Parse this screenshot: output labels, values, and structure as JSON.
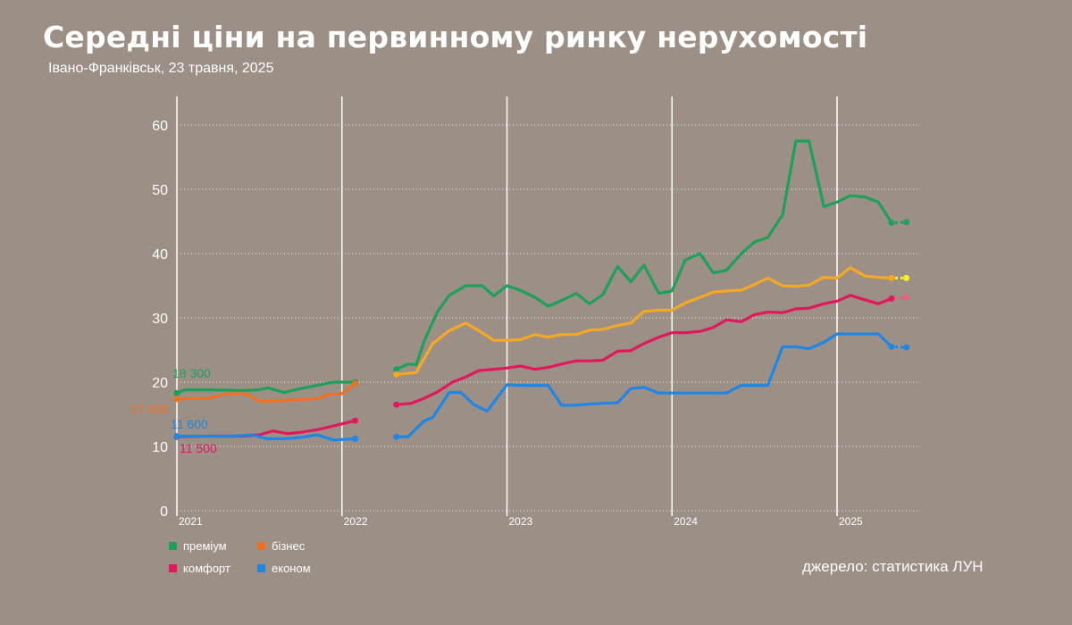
{
  "title": "Середні ціни на первинному ринку нерухомості",
  "subtitle": "Івано-Франківськ, 23 травня, 2025",
  "source": "джерело: статистика ЛУН",
  "chart_data": {
    "type": "line",
    "ylim": [
      0,
      60
    ],
    "yticks": [
      "0",
      "10",
      "20",
      "30",
      "40",
      "50",
      "60"
    ],
    "xlim": [
      2021.0,
      2025.35
    ],
    "xticks": [
      {
        "value": 2021,
        "label": "2021"
      },
      {
        "value": 2022,
        "label": "2022"
      },
      {
        "value": 2023,
        "label": "2023"
      },
      {
        "value": 2024,
        "label": "2024"
      },
      {
        "value": 2025,
        "label": "2025"
      }
    ],
    "grid": "horizontal dotted, vertical solid at years",
    "legend_position": "bottom-left",
    "series": [
      {
        "name": "преміум",
        "color": "#1fa05a",
        "segments": [
          [
            [
              2021.0,
              18.3
            ],
            [
              2021.05,
              18.8
            ],
            [
              2021.2,
              18.8
            ],
            [
              2021.4,
              18.7
            ],
            [
              2021.5,
              18.8
            ],
            [
              2021.55,
              19.1
            ],
            [
              2021.65,
              18.4
            ],
            [
              2021.75,
              19.0
            ],
            [
              2021.85,
              19.5
            ],
            [
              2021.95,
              20.0
            ],
            [
              2022.08,
              20.0
            ]
          ],
          [
            [
              2022.33,
              22.0
            ],
            [
              2022.4,
              22.8
            ],
            [
              2022.45,
              22.7
            ],
            [
              2022.5,
              26.5
            ],
            [
              2022.58,
              31.0
            ],
            [
              2022.65,
              33.5
            ],
            [
              2022.75,
              35.0
            ],
            [
              2022.85,
              35.0
            ],
            [
              2022.92,
              33.4
            ],
            [
              2023.0,
              35.0
            ],
            [
              2023.08,
              34.3
            ],
            [
              2023.17,
              33.2
            ],
            [
              2023.25,
              31.8
            ],
            [
              2023.33,
              32.7
            ],
            [
              2023.42,
              33.8
            ],
            [
              2023.5,
              32.2
            ],
            [
              2023.58,
              33.6
            ],
            [
              2023.67,
              38.0
            ],
            [
              2023.75,
              35.6
            ],
            [
              2023.83,
              38.2
            ],
            [
              2023.92,
              33.8
            ],
            [
              2024.0,
              34.2
            ],
            [
              2024.08,
              39.0
            ],
            [
              2024.17,
              40.0
            ],
            [
              2024.25,
              37.0
            ],
            [
              2024.33,
              37.4
            ],
            [
              2024.42,
              40.0
            ],
            [
              2024.5,
              41.8
            ],
            [
              2024.58,
              42.5
            ],
            [
              2024.67,
              46.0
            ],
            [
              2024.75,
              57.5
            ],
            [
              2024.83,
              57.5
            ],
            [
              2024.92,
              47.3
            ],
            [
              2025.0,
              48.0
            ],
            [
              2025.08,
              49.0
            ],
            [
              2025.17,
              48.8
            ],
            [
              2025.25,
              48.0
            ],
            [
              2025.33,
              44.8
            ]
          ],
          [
            [
              2025.42,
              44.9
            ]
          ]
        ]
      },
      {
        "name": "бізнес",
        "color_early": "#f26f1f",
        "color": "#f5a823",
        "color_late": "#f6f026",
        "segments": [
          [
            [
              2021.0,
              17.4
            ],
            [
              2021.05,
              17.4
            ],
            [
              2021.2,
              17.5
            ],
            [
              2021.3,
              18.2
            ],
            [
              2021.42,
              18.2
            ],
            [
              2021.5,
              17.0
            ],
            [
              2021.6,
              17.1
            ],
            [
              2021.75,
              17.3
            ],
            [
              2021.85,
              17.4
            ],
            [
              2021.92,
              18.1
            ],
            [
              2022.0,
              18.2
            ],
            [
              2022.08,
              19.8
            ]
          ],
          [
            [
              2022.33,
              21.2
            ],
            [
              2022.45,
              21.5
            ],
            [
              2022.55,
              26.0
            ],
            [
              2022.65,
              28.0
            ],
            [
              2022.75,
              29.2
            ],
            [
              2022.83,
              28.0
            ],
            [
              2022.92,
              26.5
            ],
            [
              2023.0,
              26.5
            ],
            [
              2023.08,
              26.6
            ],
            [
              2023.17,
              27.4
            ],
            [
              2023.25,
              27.0
            ],
            [
              2023.33,
              27.4
            ],
            [
              2023.42,
              27.4
            ],
            [
              2023.5,
              28.1
            ],
            [
              2023.58,
              28.2
            ],
            [
              2023.67,
              28.8
            ],
            [
              2023.75,
              29.2
            ],
            [
              2023.83,
              31.0
            ],
            [
              2023.92,
              31.2
            ],
            [
              2024.0,
              31.2
            ],
            [
              2024.08,
              32.3
            ],
            [
              2024.17,
              33.2
            ],
            [
              2024.25,
              34.0
            ],
            [
              2024.33,
              34.2
            ],
            [
              2024.42,
              34.3
            ],
            [
              2024.5,
              35.2
            ],
            [
              2024.58,
              36.2
            ],
            [
              2024.67,
              35.0
            ],
            [
              2024.75,
              34.9
            ],
            [
              2024.83,
              35.1
            ],
            [
              2024.92,
              36.3
            ],
            [
              2025.0,
              36.2
            ],
            [
              2025.08,
              37.8
            ],
            [
              2025.17,
              36.5
            ],
            [
              2025.25,
              36.3
            ],
            [
              2025.33,
              36.2
            ]
          ],
          [
            [
              2025.42,
              36.2
            ]
          ]
        ]
      },
      {
        "name": "комфорт",
        "color": "#e0195f",
        "color_late": "#ee5d7e",
        "segments": [
          [
            [
              2021.0,
              11.5
            ],
            [
              2021.2,
              11.6
            ],
            [
              2021.4,
              11.6
            ],
            [
              2021.5,
              11.8
            ],
            [
              2021.58,
              12.4
            ],
            [
              2021.67,
              12.0
            ],
            [
              2021.75,
              12.2
            ],
            [
              2021.85,
              12.6
            ],
            [
              2021.95,
              13.2
            ],
            [
              2022.08,
              14.0
            ]
          ],
          [
            [
              2022.33,
              16.5
            ],
            [
              2022.42,
              16.7
            ],
            [
              2022.5,
              17.5
            ],
            [
              2022.58,
              18.5
            ],
            [
              2022.67,
              20.0
            ],
            [
              2022.75,
              20.8
            ],
            [
              2022.83,
              21.8
            ],
            [
              2022.92,
              22.0
            ],
            [
              2023.0,
              22.2
            ],
            [
              2023.08,
              22.5
            ],
            [
              2023.17,
              22.0
            ],
            [
              2023.25,
              22.3
            ],
            [
              2023.33,
              22.8
            ],
            [
              2023.42,
              23.3
            ],
            [
              2023.5,
              23.3
            ],
            [
              2023.58,
              23.4
            ],
            [
              2023.67,
              24.8
            ],
            [
              2023.75,
              24.9
            ],
            [
              2023.83,
              26.0
            ],
            [
              2023.92,
              27.0
            ],
            [
              2024.0,
              27.7
            ],
            [
              2024.08,
              27.7
            ],
            [
              2024.17,
              27.9
            ],
            [
              2024.25,
              28.5
            ],
            [
              2024.33,
              29.7
            ],
            [
              2024.42,
              29.4
            ],
            [
              2024.5,
              30.5
            ],
            [
              2024.58,
              30.9
            ],
            [
              2024.67,
              30.8
            ],
            [
              2024.75,
              31.4
            ],
            [
              2024.83,
              31.5
            ],
            [
              2024.92,
              32.2
            ],
            [
              2025.0,
              32.6
            ],
            [
              2025.08,
              33.5
            ],
            [
              2025.17,
              32.8
            ],
            [
              2025.25,
              32.2
            ],
            [
              2025.33,
              33.0
            ]
          ],
          [
            [
              2025.42,
              33.2
            ]
          ]
        ]
      },
      {
        "name": "економ",
        "color": "#1e87e6",
        "segments": [
          [
            [
              2021.0,
              11.6
            ],
            [
              2021.1,
              11.6
            ],
            [
              2021.2,
              11.6
            ],
            [
              2021.35,
              11.6
            ],
            [
              2021.45,
              11.8
            ],
            [
              2021.55,
              11.2
            ],
            [
              2021.65,
              11.2
            ],
            [
              2021.75,
              11.4
            ],
            [
              2021.85,
              11.8
            ],
            [
              2021.95,
              11.0
            ],
            [
              2022.08,
              11.2
            ]
          ],
          [
            [
              2022.33,
              11.5
            ],
            [
              2022.4,
              11.5
            ],
            [
              2022.5,
              14.0
            ],
            [
              2022.55,
              14.5
            ],
            [
              2022.65,
              18.4
            ],
            [
              2022.72,
              18.4
            ],
            [
              2022.8,
              16.5
            ],
            [
              2022.88,
              15.5
            ],
            [
              2023.0,
              19.6
            ],
            [
              2023.08,
              19.5
            ],
            [
              2023.17,
              19.5
            ],
            [
              2023.25,
              19.5
            ],
            [
              2023.33,
              16.4
            ],
            [
              2023.42,
              16.4
            ],
            [
              2023.5,
              16.6
            ],
            [
              2023.58,
              16.7
            ],
            [
              2023.67,
              16.8
            ],
            [
              2023.75,
              19.0
            ],
            [
              2023.83,
              19.2
            ],
            [
              2023.92,
              18.3
            ],
            [
              2024.0,
              18.3
            ],
            [
              2024.08,
              18.3
            ],
            [
              2024.17,
              18.3
            ],
            [
              2024.25,
              18.3
            ],
            [
              2024.33,
              18.3
            ],
            [
              2024.42,
              19.5
            ],
            [
              2024.5,
              19.5
            ],
            [
              2024.58,
              19.5
            ],
            [
              2024.67,
              25.5
            ],
            [
              2024.75,
              25.5
            ],
            [
              2024.83,
              25.2
            ],
            [
              2024.92,
              26.2
            ],
            [
              2025.0,
              27.5
            ],
            [
              2025.08,
              27.5
            ],
            [
              2025.17,
              27.5
            ],
            [
              2025.25,
              27.5
            ],
            [
              2025.33,
              25.5
            ]
          ],
          [
            [
              2025.42,
              25.4
            ]
          ]
        ]
      }
    ],
    "annotations": [
      {
        "text": "18 300",
        "color": "#1fa05a"
      },
      {
        "text": "17 400",
        "color": "#f26f1f"
      },
      {
        "text": "11 600",
        "color": "#1e87e6"
      },
      {
        "text": "11 500",
        "color": "#e0195f"
      }
    ]
  }
}
